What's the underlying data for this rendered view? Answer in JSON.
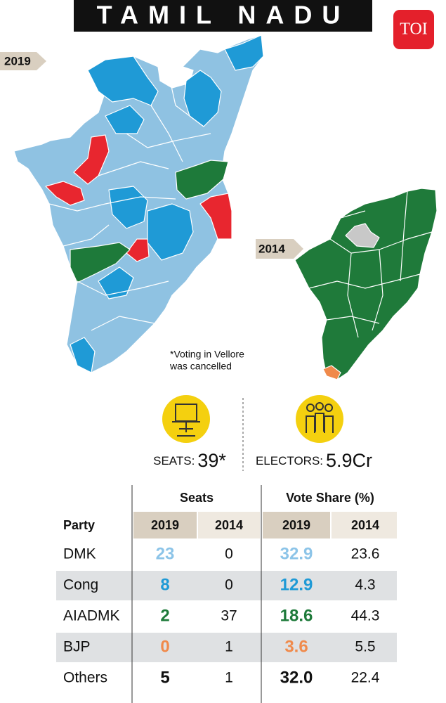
{
  "header": {
    "title": "TAMIL NADU",
    "logo": "TOI"
  },
  "maps": {
    "current": {
      "label": "2019",
      "note": [
        "*Voting in Vellore",
        "was cancelled"
      ]
    },
    "previous": {
      "label": "2014"
    }
  },
  "stats": [
    {
      "label": "SEATS:",
      "value": "39*"
    },
    {
      "label": "ELECTORS:",
      "value": "5.9Cr"
    }
  ],
  "table": {
    "groups": [
      "Seats",
      "Vote Share (%)"
    ],
    "columns": [
      "Party",
      "2019",
      "2014",
      "2019",
      "2014"
    ],
    "rows": [
      {
        "party": "DMK",
        "color": "#8cc4e8",
        "cells": [
          "23",
          "0",
          "32.9",
          "23.6"
        ]
      },
      {
        "party": "Cong",
        "color": "#1f9ad6",
        "cells": [
          "8",
          "0",
          "12.9",
          "4.3"
        ]
      },
      {
        "party": "AIADMK",
        "color": "#1e7a3a",
        "cells": [
          "2",
          "37",
          "18.6",
          "44.3"
        ]
      },
      {
        "party": "BJP",
        "color": "#f08a4b",
        "cells": [
          "0",
          "1",
          "3.6",
          "5.5"
        ]
      },
      {
        "party": "Others",
        "color": "#111111",
        "cells": [
          "5",
          "1",
          "32.0",
          "22.4"
        ]
      }
    ]
  }
}
